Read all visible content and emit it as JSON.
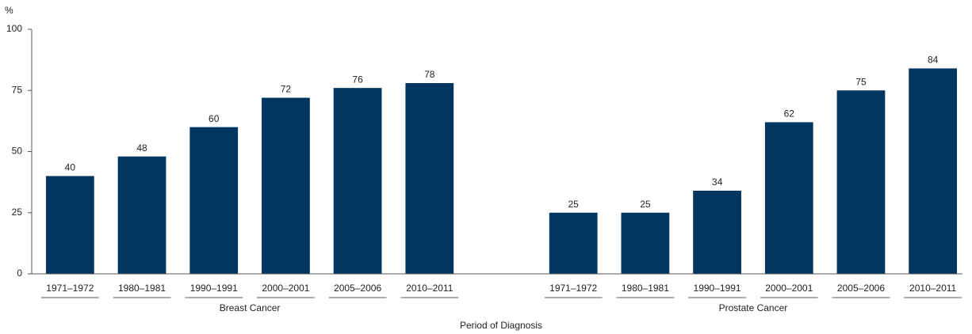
{
  "chart_data": {
    "type": "grouped-bar",
    "y_unit_label": "%",
    "x_axis_label": "Period of Diagnosis",
    "color": "#003560",
    "ylim": [
      0,
      100
    ],
    "yticks": [
      0,
      25,
      50,
      75,
      100
    ],
    "groups": [
      {
        "name": "Breast Cancer",
        "categories": [
          "1971–1972",
          "1980–1981",
          "1990–1991",
          "2000–2001",
          "2005–2006",
          "2010–2011"
        ],
        "values": [
          40,
          48,
          60,
          72,
          76,
          78
        ]
      },
      {
        "name": "Prostate Cancer",
        "categories": [
          "1971–1972",
          "1980–1981",
          "1990–1991",
          "2000–2001",
          "2005–2006",
          "2010–2011"
        ],
        "values": [
          25,
          25,
          34,
          62,
          75,
          84
        ]
      }
    ]
  }
}
